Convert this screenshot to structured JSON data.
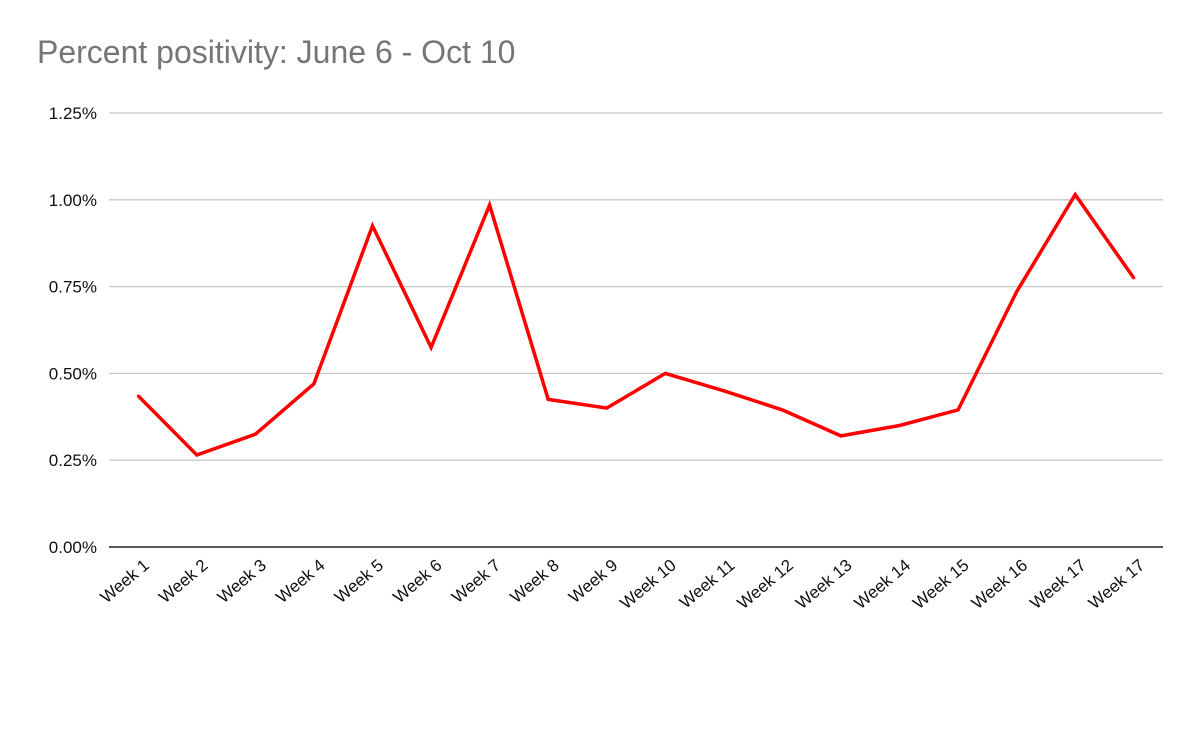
{
  "chart_data": {
    "type": "line",
    "title": "Percent positivity: June 6 - Oct 10",
    "xlabel": "",
    "ylabel": "",
    "categories": [
      "Week 1",
      "Week 2",
      "Week 3",
      "Week 4",
      "Week 5",
      "Week 6",
      "Week 7",
      "Week 8",
      "Week 9",
      "Week 10",
      "Week 11",
      "Week 12",
      "Week 13",
      "Week 14",
      "Week 15",
      "Week 16",
      "Week 17",
      "Week 17"
    ],
    "series": [
      {
        "values": [
          0.435,
          0.265,
          0.325,
          0.47,
          0.925,
          0.575,
          0.985,
          0.425,
          0.4,
          0.5,
          0.45,
          0.395,
          0.32,
          0.35,
          0.395,
          0.735,
          1.015,
          0.775
        ],
        "color": "#ff0000"
      }
    ],
    "ylim": [
      0,
      1.25
    ],
    "yticks": [
      0,
      0.25,
      0.5,
      0.75,
      1.0,
      1.25
    ],
    "ytick_labels": [
      "0.00%",
      "0.25%",
      "0.50%",
      "0.75%",
      "1.00%",
      "1.25%"
    ],
    "grid": true,
    "legend": "none",
    "colors": {
      "line": "#ff0000",
      "grid": "#c8c8c8",
      "axis": "#222222",
      "title": "#757575"
    }
  }
}
